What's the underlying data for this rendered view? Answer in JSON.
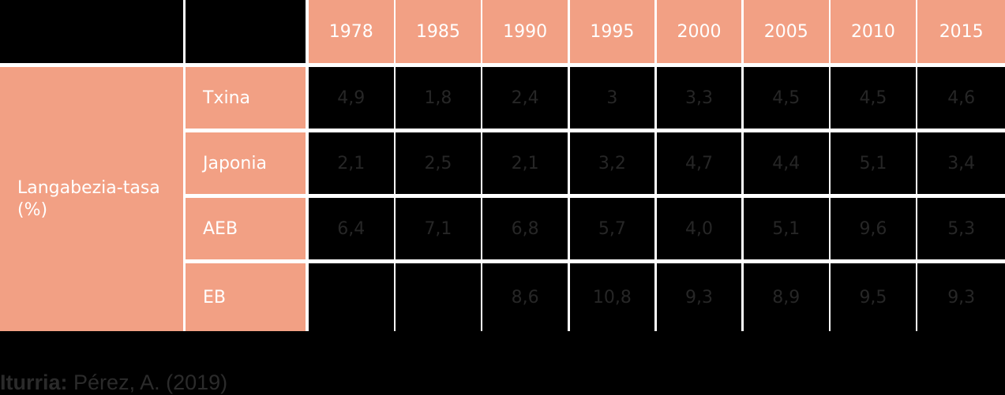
{
  "table": {
    "row_group": "Langabezia-tasa (%)",
    "columns": [
      "1978",
      "1985",
      "1990",
      "1995",
      "2000",
      "2005",
      "2010",
      "2015"
    ],
    "rows": [
      {
        "label": "Txina",
        "cells": [
          "4,9",
          "1,8",
          "2,4",
          "3",
          "3,3",
          "4,5",
          "4,5",
          "4,6"
        ]
      },
      {
        "label": "Japonia",
        "cells": [
          "2,1",
          "2,5",
          "2,1",
          "3,2",
          "4,7",
          "4,4",
          "5,1",
          "3,4"
        ]
      },
      {
        "label": "AEB",
        "cells": [
          "6,4",
          "7,1",
          "6,8",
          "5,7",
          "4,0",
          "5,1",
          "9,6",
          "5,3"
        ]
      },
      {
        "label": "EB",
        "cells": [
          null,
          null,
          "8,6",
          "10,8",
          "9,3",
          "8,9",
          "9,5",
          "9,3"
        ]
      }
    ]
  },
  "source": {
    "label": "Iturria:",
    "text": "Pérez, A. (2019)"
  }
}
